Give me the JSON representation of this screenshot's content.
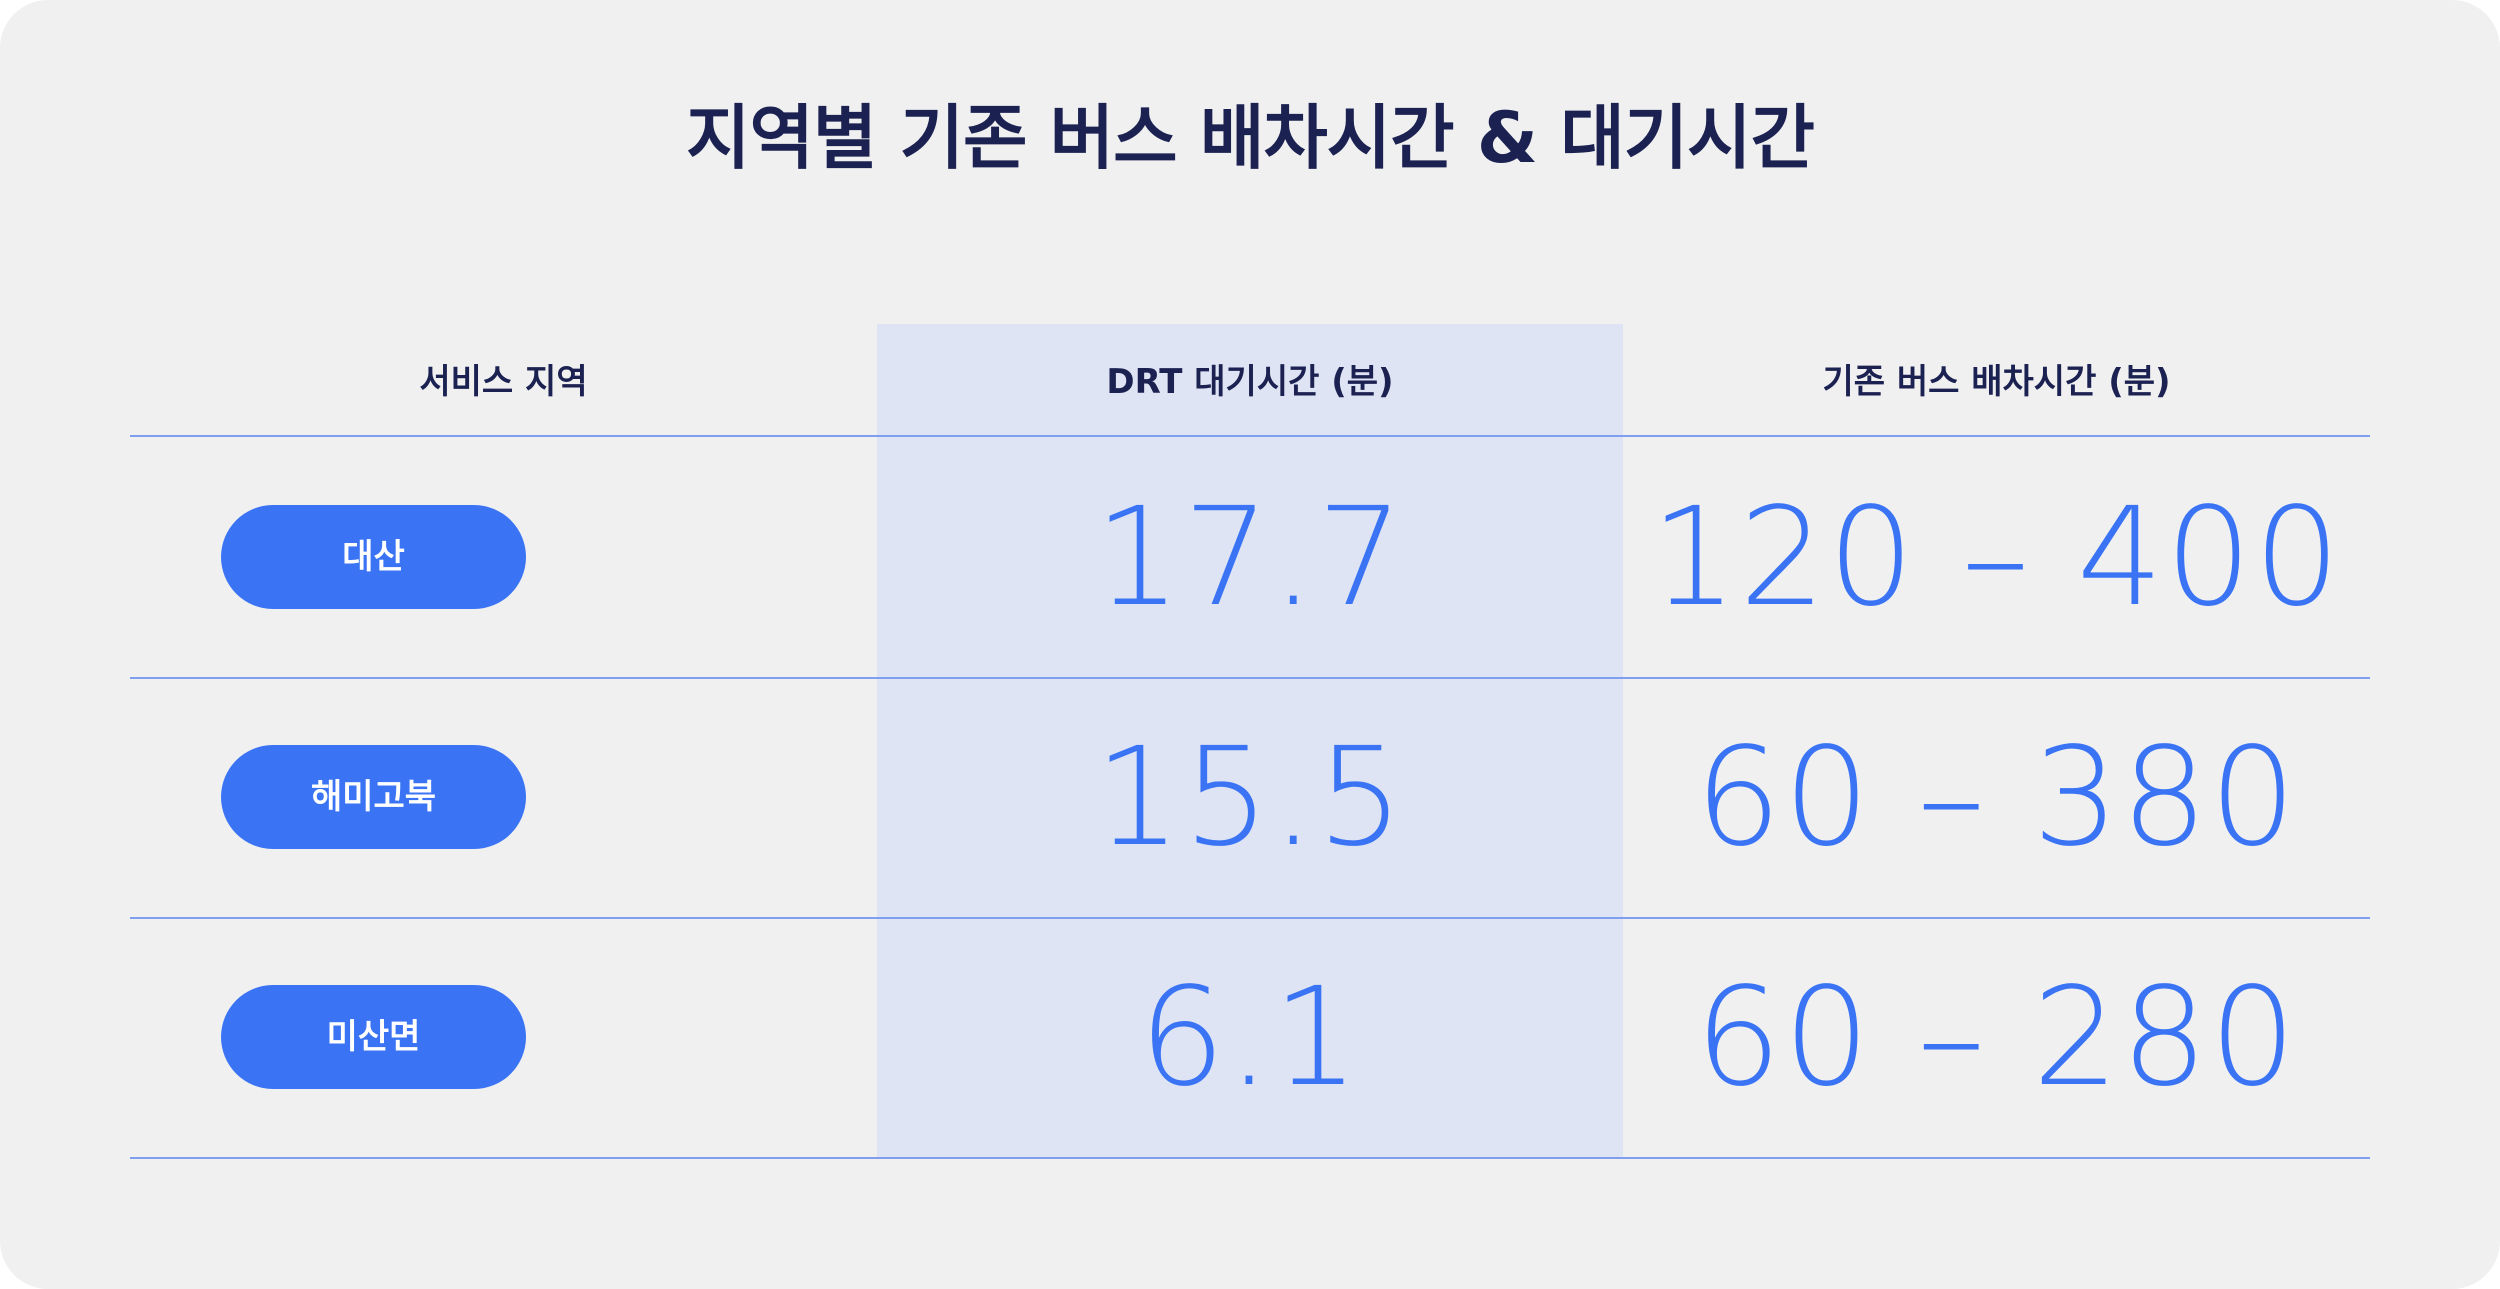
{
  "title": "지역별 기존 버스 배차시간 & 대기시간",
  "headers": {
    "region": "서비스 지역",
    "drt_wait": "DRT 대기시간 (분)",
    "bus_interval": "기존 버스 배차시간 (분)"
  },
  "rows": [
    {
      "region": "대산",
      "drt_wait": "17.7",
      "bus_interval": "120 – 400"
    },
    {
      "region": "해미고북",
      "drt_wait": "15.5",
      "bus_interval": "60 – 380"
    },
    {
      "region": "미산면",
      "drt_wait": "6.1",
      "bus_interval": "60 – 280"
    }
  ],
  "colors": {
    "background": "#f0f0f1",
    "title_text": "#1b2150",
    "accent_blue": "#3a74f5",
    "highlight_column": "#dfe4f4",
    "divider": "#7f9fee"
  }
}
